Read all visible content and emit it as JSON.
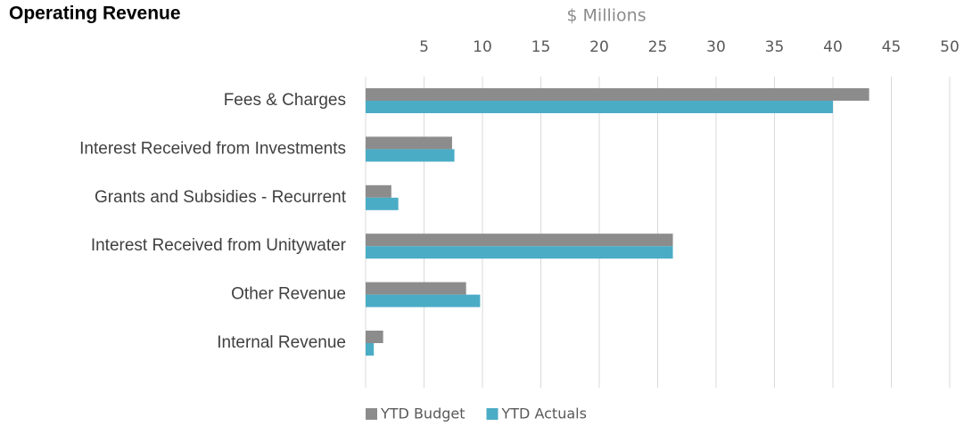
{
  "chart_data": {
    "type": "hbar",
    "title": "Operating Revenue",
    "x_label": "$ Millions",
    "categories": [
      "Fees & Charges",
      "Interest Received from Investments",
      "Grants and Subsidies - Recurrent",
      "Interest Received from Unitywater",
      "Other Revenue",
      "Internal Revenue"
    ],
    "series": [
      {
        "name": "YTD Budget",
        "color": "#8c8c8c",
        "values": [
          43.1,
          7.4,
          2.2,
          26.3,
          8.6,
          1.5
        ]
      },
      {
        "name": "YTD Actuals",
        "color": "#4bacc6",
        "values": [
          40.0,
          7.6,
          2.8,
          26.3,
          9.8,
          0.7
        ]
      }
    ],
    "xlim": [
      0,
      50
    ],
    "xticks": [
      5,
      10,
      15,
      20,
      25,
      30,
      35,
      40,
      45,
      50
    ],
    "grid": true,
    "legend": "bottom"
  }
}
